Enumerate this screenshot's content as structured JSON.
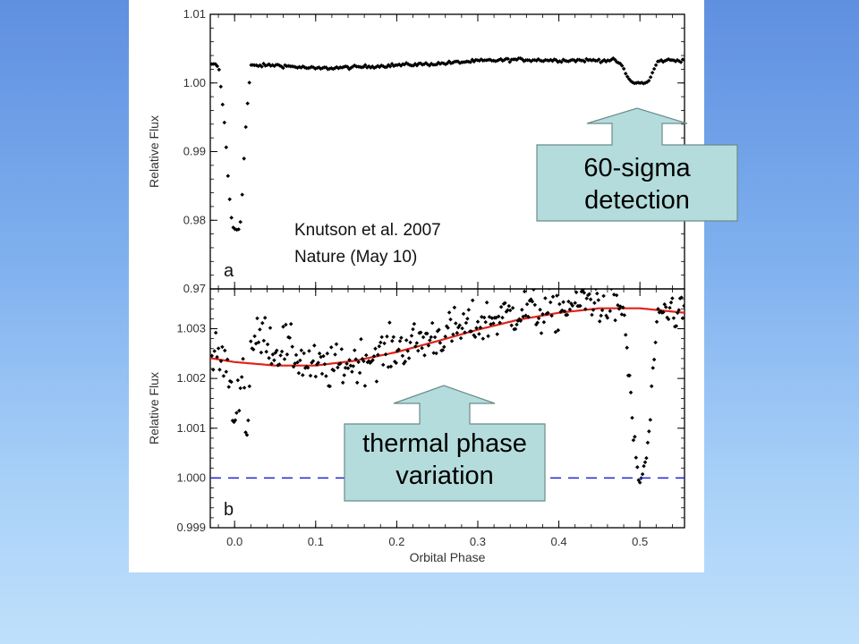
{
  "chart_data": [
    {
      "panel_label": "a",
      "type": "scatter",
      "xlabel": "",
      "ylabel": "Relative Flux",
      "xlim": [
        -0.03,
        0.555
      ],
      "ylim": [
        0.97,
        1.01
      ],
      "yticks": [
        "1.01",
        "1.00",
        "0.99",
        "0.98",
        "0.97"
      ],
      "yticks_values": [
        1.01,
        1.0,
        0.99,
        0.98,
        0.97
      ],
      "annotation": [
        "Knutson et al. 2007",
        "Nature (May 10)"
      ],
      "series": [
        {
          "name": "transit light curve",
          "x": [
            -0.03,
            -0.025,
            -0.02,
            -0.018,
            -0.016,
            -0.014,
            -0.012,
            -0.01,
            -0.008,
            -0.006,
            -0.004,
            -0.002,
            0.0,
            0.002,
            0.004,
            0.006,
            0.008,
            0.01,
            0.012,
            0.014,
            0.016,
            0.02,
            0.05,
            0.1,
            0.15,
            0.2,
            0.25,
            0.3,
            0.35,
            0.4,
            0.47,
            0.478,
            0.482,
            0.486,
            0.49,
            0.495,
            0.5,
            0.505,
            0.51,
            0.514,
            0.518,
            0.522,
            0.53,
            0.555
          ],
          "y": [
            1.0026,
            1.0027,
            1.0024,
            1.001,
            0.998,
            0.996,
            0.9935,
            0.99,
            0.986,
            0.983,
            0.9805,
            0.979,
            0.9788,
            0.9786,
            0.9787,
            0.9789,
            0.9805,
            0.985,
            0.99,
            0.994,
            0.997,
            1.0025,
            1.0026,
            1.0021,
            1.0023,
            1.0026,
            1.0028,
            1.0032,
            1.0034,
            1.0033,
            1.0033,
            1.0025,
            1.0015,
            1.0006,
            1.0001,
            1.0,
            1.0,
            1.0,
            1.0001,
            1.001,
            1.0022,
            1.0031,
            1.0033,
            1.0033
          ]
        }
      ]
    },
    {
      "panel_label": "b",
      "type": "scatter",
      "xlabel": "Orbital Phase",
      "ylabel": "Relative Flux",
      "xlim": [
        -0.03,
        0.555
      ],
      "ylim": [
        0.999,
        1.0038
      ],
      "xticks": [
        "0.0",
        "0.1",
        "0.2",
        "0.3",
        "0.4",
        "0.5"
      ],
      "xticks_values": [
        0.0,
        0.1,
        0.2,
        0.3,
        0.4,
        0.5
      ],
      "yticks": [
        "1.003",
        "1.002",
        "1.001",
        "1.000",
        "0.999"
      ],
      "yticks_values": [
        1.003,
        1.002,
        1.001,
        1.0,
        0.999
      ],
      "series": [
        {
          "name": "model fit",
          "color": "#e0231b",
          "x": [
            -0.03,
            0.0,
            0.05,
            0.1,
            0.15,
            0.2,
            0.25,
            0.3,
            0.35,
            0.4,
            0.45,
            0.5,
            0.555
          ],
          "y": [
            1.00241,
            1.00233,
            1.00226,
            1.00226,
            1.00236,
            1.00253,
            1.00275,
            1.00298,
            1.00318,
            1.00332,
            1.00341,
            1.00341,
            1.00332
          ]
        },
        {
          "name": "binned data",
          "color": "#000000",
          "x": [
            -0.03,
            -0.02,
            -0.01,
            0.0,
            0.01,
            0.015,
            0.02,
            0.03,
            0.04,
            0.05,
            0.06,
            0.08,
            0.1,
            0.12,
            0.14,
            0.16,
            0.18,
            0.2,
            0.22,
            0.24,
            0.26,
            0.28,
            0.3,
            0.32,
            0.34,
            0.36,
            0.38,
            0.4,
            0.42,
            0.44,
            0.46,
            0.48,
            0.49,
            0.495,
            0.5,
            0.505,
            0.51,
            0.52,
            0.53,
            0.54,
            0.555
          ],
          "y": [
            1.00255,
            1.0024,
            1.0023,
            1.0011,
            1.0024,
            1.00065,
            1.00268,
            1.0028,
            1.0029,
            1.0025,
            1.0027,
            1.0024,
            1.0022,
            1.0022,
            1.0023,
            1.0024,
            1.0025,
            1.0026,
            1.0027,
            1.0028,
            1.0029,
            1.003,
            1.0031,
            1.0032,
            1.0033,
            1.0034,
            1.0033,
            1.0034,
            1.0035,
            1.0036,
            1.0035,
            1.0034,
            1.0013,
            1.0003,
            0.9999,
            1.0002,
            1.0006,
            1.003,
            1.0033,
            1.0034,
            1.0033
          ]
        },
        {
          "name": "secondary eclipse baseline",
          "color": "#2323d8",
          "style": "dashed",
          "x": [
            -0.03,
            0.555
          ],
          "y": [
            1.0,
            1.0
          ]
        }
      ]
    }
  ],
  "callouts": {
    "top": {
      "lines": [
        "60-sigma",
        "detection"
      ],
      "fill": "#b4dcdc"
    },
    "bottom": {
      "lines": [
        "thermal phase",
        "variation"
      ],
      "fill": "#b4dcdc"
    }
  }
}
